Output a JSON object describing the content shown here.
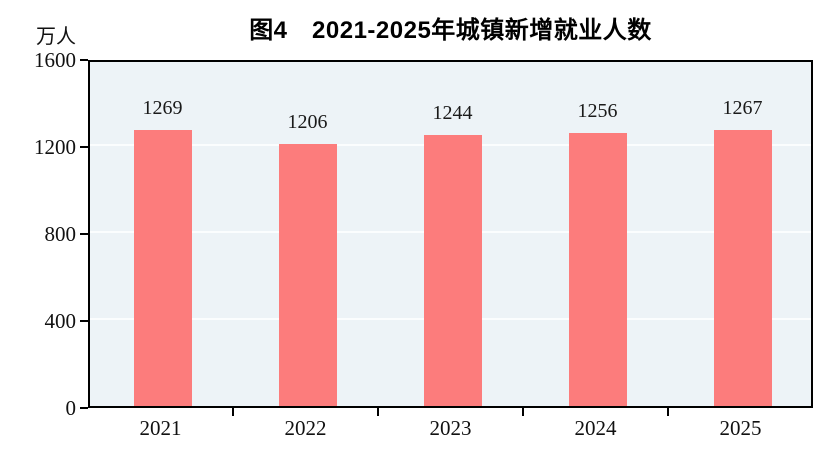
{
  "title": "图4　2021-2025年城镇新增就业人数",
  "y_unit_label": "万人",
  "colors": {
    "bar": "#FC7C7C",
    "plot_background": "#EDF3F7",
    "gridline": "#FBFDFE",
    "axis": "#000000",
    "text": "#111111"
  },
  "chart_data": {
    "type": "bar",
    "title": "图4　2021-2025年城镇新增就业人数",
    "categories": [
      "2021",
      "2022",
      "2023",
      "2024",
      "2025"
    ],
    "values": [
      1269,
      1206,
      1244,
      1256,
      1267
    ],
    "value_labels": [
      "1269",
      "1206",
      "1244",
      "1256",
      "1267"
    ],
    "xlabel": "",
    "ylabel": "万人",
    "ylim": [
      0,
      1600
    ],
    "yticks": [
      0,
      400,
      800,
      1200,
      1600
    ],
    "ytick_labels": [
      "0",
      "400",
      "800",
      "1200",
      "1600"
    ],
    "grid": "horizontal",
    "legend_position": "none"
  }
}
